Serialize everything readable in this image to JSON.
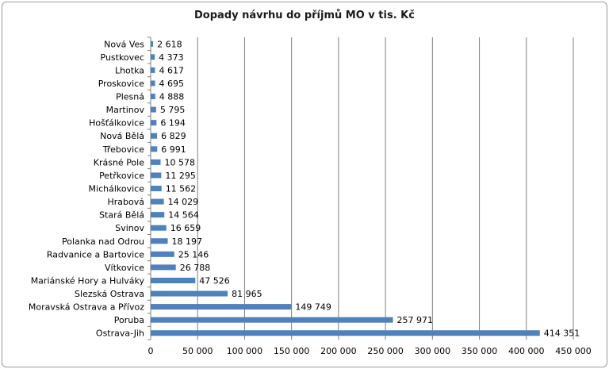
{
  "chart_data": {
    "type": "bar",
    "orientation": "horizontal",
    "title": "Dopady návrhu do příjmů MO v tis. Kč",
    "categories": [
      "Nová Ves",
      "Pustkovec",
      "Lhotka",
      "Proskovice",
      "Plesná",
      "Martinov",
      "Hošťálkovice",
      "Nová Bělá",
      "Třebovice",
      "Krásné Pole",
      "Petřkovice",
      "Michálkovice",
      "Hrabová",
      "Stará Bělá",
      "Svinov",
      "Polanka nad Odrou",
      "Radvanice a Bartovice",
      "Vítkovice",
      "Mariánské Hory a Hulváky",
      "Slezská Ostrava",
      "Moravská Ostrava a Přívoz",
      "Poruba",
      "Ostrava-Jih"
    ],
    "values": [
      2618,
      4373,
      4617,
      4695,
      4888,
      5795,
      6194,
      6829,
      6991,
      10578,
      11295,
      11562,
      14029,
      14564,
      16659,
      18197,
      25146,
      26788,
      47526,
      81965,
      149749,
      257971,
      414351
    ],
    "value_labels": [
      "2 618",
      "4 373",
      "4 617",
      "4 695",
      "4 888",
      "5 795",
      "6 194",
      "6 829",
      "6 991",
      "10 578",
      "11 295",
      "11 562",
      "14 029",
      "14 564",
      "16 659",
      "18 197",
      "25 146",
      "26 788",
      "47 526",
      "81 965",
      "149 749",
      "257 971",
      "414 351"
    ],
    "xlim": [
      0,
      450000
    ],
    "xticks": [
      0,
      50000,
      100000,
      150000,
      200000,
      250000,
      300000,
      350000,
      400000,
      450000
    ],
    "xtick_labels": [
      "0",
      "50 000",
      "100 000",
      "150 000",
      "200 000",
      "250 000",
      "300 000",
      "350 000",
      "400 000",
      "450 000"
    ],
    "grid": "vertical",
    "bar_color": "#4f81bd",
    "grid_color": "#7f7f7f"
  }
}
